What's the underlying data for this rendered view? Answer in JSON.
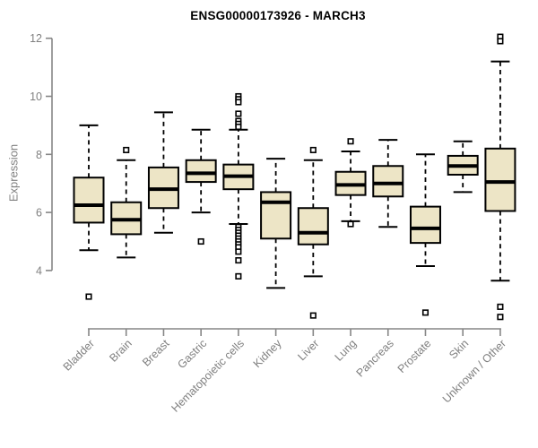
{
  "title": "ENSG00000173926 - MARCH3",
  "colors": {
    "box_fill": "#EDE5C6",
    "box_stroke": "#000000",
    "median": "#000000",
    "whisker": "#000000",
    "outlier_stroke": "#000000",
    "axis": "#868686",
    "tick_label": "#808080",
    "title": "#000000"
  },
  "chart_data": {
    "type": "boxplot",
    "title": "ENSG00000173926 - MARCH3",
    "xlabel": "",
    "ylabel": "Expression",
    "ylim": [
      4,
      12
    ],
    "yticks": [
      4,
      6,
      8,
      10,
      12
    ],
    "grid": false,
    "legend": false,
    "categories": [
      "Bladder",
      "Brain",
      "Breast",
      "Gastric",
      "Hematopoietic cells",
      "Kidney",
      "Liver",
      "Lung",
      "Pancreas",
      "Prostate",
      "Skin",
      "Unknown / Other"
    ],
    "series": [
      {
        "name": "Bladder",
        "low": 4.7,
        "q1": 5.65,
        "median": 6.25,
        "q3": 7.2,
        "high": 9.0,
        "outliers": [
          3.1
        ]
      },
      {
        "name": "Brain",
        "low": 4.45,
        "q1": 5.25,
        "median": 5.75,
        "q3": 6.35,
        "high": 7.8,
        "outliers": [
          8.15
        ]
      },
      {
        "name": "Breast",
        "low": 5.3,
        "q1": 6.15,
        "median": 6.8,
        "q3": 7.55,
        "high": 9.45,
        "outliers": []
      },
      {
        "name": "Gastric",
        "low": 6.0,
        "q1": 7.05,
        "median": 7.35,
        "q3": 7.8,
        "high": 8.85,
        "outliers": [
          5.0
        ]
      },
      {
        "name": "Hematopoietic cells",
        "low": 5.6,
        "q1": 6.8,
        "median": 7.25,
        "q3": 7.65,
        "high": 8.85,
        "outliers": [
          10.0,
          9.9,
          9.8,
          9.4,
          9.15,
          9.05,
          8.95,
          5.5,
          5.4,
          5.3,
          5.2,
          5.1,
          5.0,
          4.9,
          4.8,
          4.65,
          4.35,
          3.8
        ]
      },
      {
        "name": "Kidney",
        "low": 3.4,
        "q1": 5.1,
        "median": 6.35,
        "q3": 6.7,
        "high": 7.85,
        "outliers": []
      },
      {
        "name": "Liver",
        "low": 3.8,
        "q1": 4.9,
        "median": 5.3,
        "q3": 6.15,
        "high": 7.8,
        "outliers": [
          8.15,
          2.45
        ]
      },
      {
        "name": "Lung",
        "low": 5.7,
        "q1": 6.6,
        "median": 6.95,
        "q3": 7.4,
        "high": 8.1,
        "outliers": [
          8.45,
          5.6
        ]
      },
      {
        "name": "Pancreas",
        "low": 5.5,
        "q1": 6.55,
        "median": 7.0,
        "q3": 7.6,
        "high": 8.5,
        "outliers": []
      },
      {
        "name": "Prostate",
        "low": 4.15,
        "q1": 4.95,
        "median": 5.45,
        "q3": 6.2,
        "high": 8.0,
        "outliers": [
          2.55
        ]
      },
      {
        "name": "Skin",
        "low": 6.7,
        "q1": 7.3,
        "median": 7.6,
        "q3": 7.95,
        "high": 8.45,
        "outliers": []
      },
      {
        "name": "Unknown / Other",
        "low": 3.65,
        "q1": 6.05,
        "median": 7.05,
        "q3": 8.2,
        "high": 11.2,
        "outliers": [
          12.05,
          11.9,
          2.75,
          2.4
        ]
      }
    ]
  }
}
